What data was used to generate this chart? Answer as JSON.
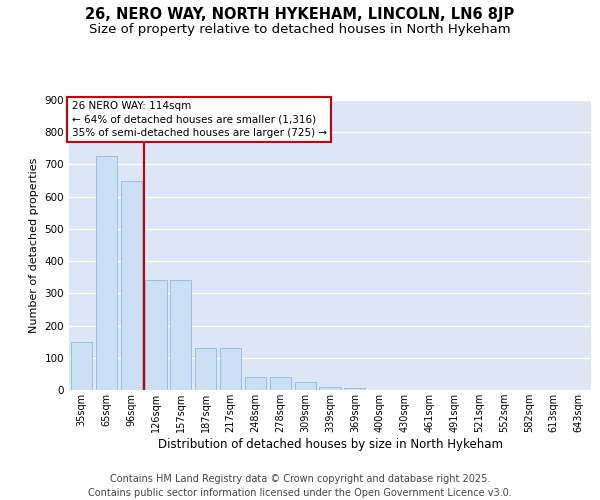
{
  "title_line1": "26, NERO WAY, NORTH HYKEHAM, LINCOLN, LN6 8JP",
  "title_line2": "Size of property relative to detached houses in North Hykeham",
  "xlabel": "Distribution of detached houses by size in North Hykeham",
  "ylabel": "Number of detached properties",
  "categories": [
    "35sqm",
    "65sqm",
    "96sqm",
    "126sqm",
    "157sqm",
    "187sqm",
    "217sqm",
    "248sqm",
    "278sqm",
    "309sqm",
    "339sqm",
    "369sqm",
    "400sqm",
    "430sqm",
    "461sqm",
    "491sqm",
    "521sqm",
    "552sqm",
    "582sqm",
    "613sqm",
    "643sqm"
  ],
  "values": [
    150,
    725,
    650,
    340,
    340,
    130,
    130,
    40,
    40,
    25,
    10,
    5,
    0,
    0,
    0,
    0,
    0,
    0,
    0,
    0,
    0
  ],
  "bar_color": "#cce0f5",
  "bar_edge_color": "#7fb3d9",
  "vline_x": 2.5,
  "vline_color": "#cc0000",
  "annotation_line1": "26 NERO WAY: 114sqm",
  "annotation_line2": "← 64% of detached houses are smaller (1,316)",
  "annotation_line3": "35% of semi-detached houses are larger (725) →",
  "annotation_box_facecolor": "white",
  "annotation_box_edgecolor": "#cc0000",
  "ylim": [
    0,
    900
  ],
  "yticks": [
    0,
    100,
    200,
    300,
    400,
    500,
    600,
    700,
    800,
    900
  ],
  "background_color": "#dce6f5",
  "grid_color": "white",
  "footer_text": "Contains HM Land Registry data © Crown copyright and database right 2025.\nContains public sector information licensed under the Open Government Licence v3.0.",
  "title_fontsize": 10.5,
  "subtitle_fontsize": 9.5,
  "footer_fontsize": 7,
  "annot_fontsize": 7.5,
  "xlabel_fontsize": 8.5,
  "ylabel_fontsize": 8,
  "tick_fontsize": 7,
  "ytick_fontsize": 7.5
}
